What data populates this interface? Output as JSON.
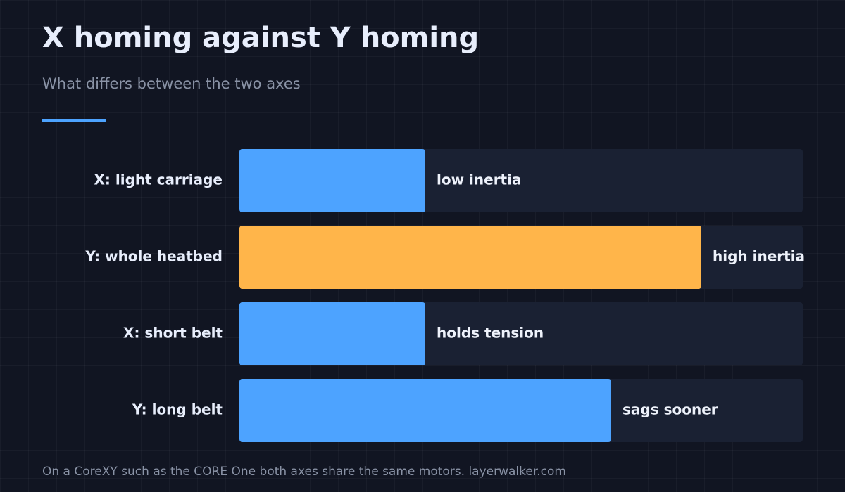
{
  "chart_data": {
    "type": "bar",
    "orientation": "horizontal",
    "title": "X homing against Y homing",
    "subtitle": "What differs between the two axes",
    "categories": [
      "X: light carriage",
      "Y: whole heatbed",
      "X: short belt",
      "Y: long belt"
    ],
    "values": [
      33,
      82,
      33,
      66
    ],
    "colors": [
      "#4da3ff",
      "#ffb54a",
      "#4da3ff",
      "#4da3ff"
    ],
    "annotations": [
      "low inertia",
      "high inertia",
      "holds tension",
      "sags sooner"
    ],
    "xlim": [
      0,
      100
    ],
    "source": "On a CoreXY such as the CORE One both axes share the same motors. layerwalker.com"
  }
}
